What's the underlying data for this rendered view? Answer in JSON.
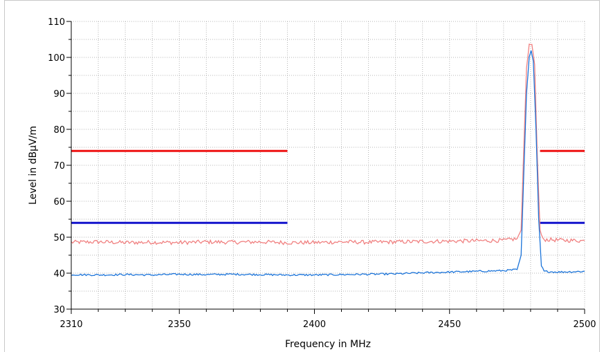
{
  "chart_data": {
    "type": "line",
    "xlabel": "Frequency in MHz",
    "ylabel": "Level in dBµV/m",
    "xlim": [
      2310,
      2500
    ],
    "ylim": [
      30,
      110
    ],
    "x_ticks": [
      2310,
      2350,
      2400,
      2450,
      2500
    ],
    "y_ticks": [
      30,
      40,
      50,
      60,
      70,
      80,
      90,
      100,
      110
    ],
    "grid": true,
    "legend": "none",
    "limit_lines": [
      {
        "value": 74,
        "color": "#ee1111",
        "segments": [
          [
            2310,
            2390
          ],
          [
            2483.5,
            2500
          ]
        ]
      },
      {
        "value": 54,
        "color": "#1111cc",
        "segments": [
          [
            2310,
            2390
          ],
          [
            2483.5,
            2500
          ]
        ]
      }
    ],
    "series": [
      {
        "color": "#f08080",
        "points": [
          [
            2310,
            48.6
          ],
          [
            2320,
            48.7
          ],
          [
            2330,
            48.5
          ],
          [
            2340,
            48.6
          ],
          [
            2350,
            48.5
          ],
          [
            2360,
            48.7
          ],
          [
            2370,
            48.6
          ],
          [
            2380,
            48.7
          ],
          [
            2390,
            48.5
          ],
          [
            2400,
            48.5
          ],
          [
            2410,
            48.7
          ],
          [
            2420,
            48.6
          ],
          [
            2430,
            48.7
          ],
          [
            2440,
            48.8
          ],
          [
            2450,
            48.9
          ],
          [
            2460,
            49.0
          ],
          [
            2470,
            49.1
          ],
          [
            2475,
            49.6
          ],
          [
            2476.5,
            52
          ],
          [
            2477.5,
            75
          ],
          [
            2478.5,
            97
          ],
          [
            2479.5,
            103.5
          ],
          [
            2480.5,
            103.6
          ],
          [
            2481.5,
            98
          ],
          [
            2482.5,
            72
          ],
          [
            2483.5,
            52
          ],
          [
            2484.5,
            49.4
          ],
          [
            2490,
            49.2
          ],
          [
            2495,
            49.1
          ],
          [
            2500,
            49.0
          ]
        ]
      },
      {
        "color": "#1a73d9",
        "points": [
          [
            2310,
            39.6
          ],
          [
            2320,
            39.5
          ],
          [
            2330,
            39.6
          ],
          [
            2340,
            39.5
          ],
          [
            2350,
            39.7
          ],
          [
            2360,
            39.6
          ],
          [
            2370,
            39.7
          ],
          [
            2380,
            39.6
          ],
          [
            2390,
            39.5
          ],
          [
            2400,
            39.5
          ],
          [
            2410,
            39.6
          ],
          [
            2420,
            39.7
          ],
          [
            2430,
            39.8
          ],
          [
            2440,
            40.1
          ],
          [
            2450,
            40.3
          ],
          [
            2460,
            40.5
          ],
          [
            2470,
            40.7
          ],
          [
            2475,
            41.0
          ],
          [
            2476.5,
            45
          ],
          [
            2477.5,
            68
          ],
          [
            2478.5,
            90
          ],
          [
            2479.5,
            100
          ],
          [
            2480.2,
            101.9
          ],
          [
            2481,
            99
          ],
          [
            2482,
            80
          ],
          [
            2483,
            55
          ],
          [
            2484,
            42
          ],
          [
            2485,
            40.5
          ],
          [
            2490,
            40.3
          ],
          [
            2495,
            40.4
          ],
          [
            2500,
            40.5
          ]
        ]
      }
    ]
  }
}
